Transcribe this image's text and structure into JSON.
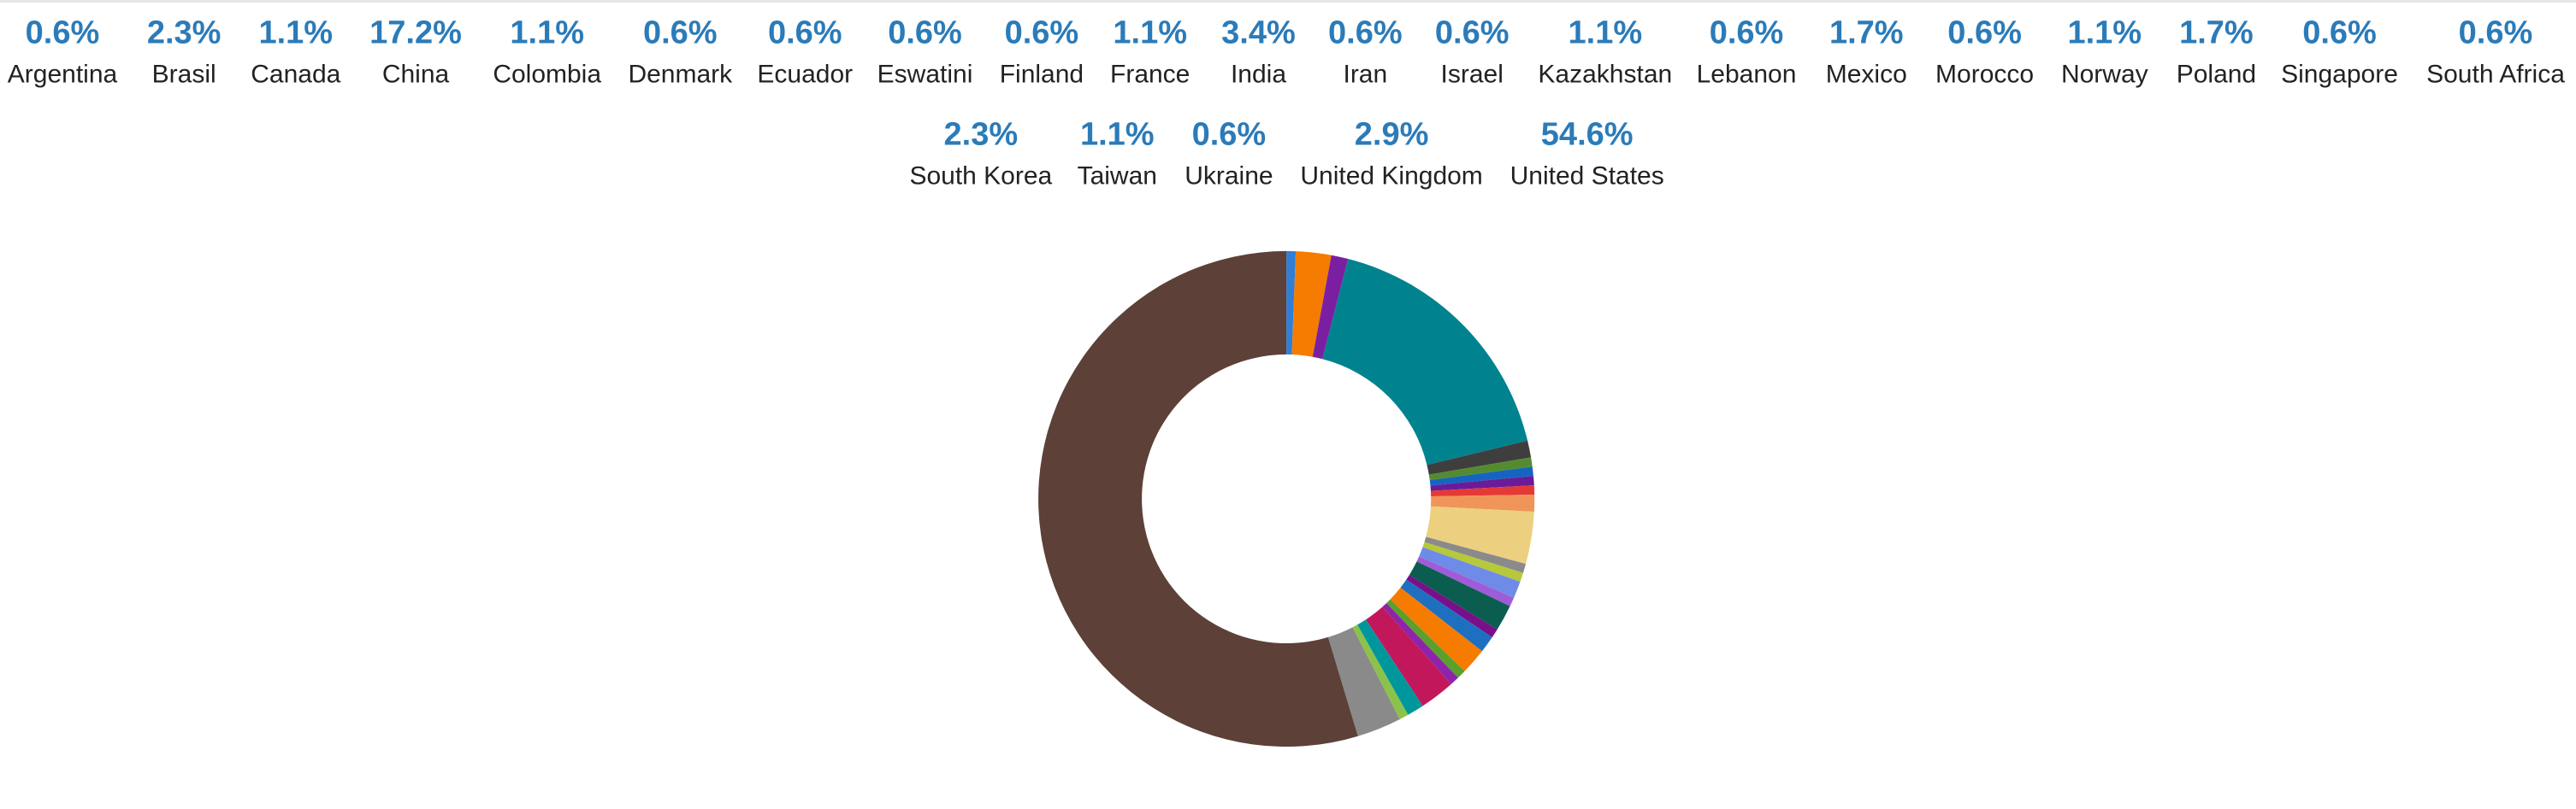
{
  "chart_data": {
    "type": "donut",
    "categories": [
      "Argentina",
      "Brasil",
      "Canada",
      "China",
      "Colombia",
      "Denmark",
      "Ecuador",
      "Eswatini",
      "Finland",
      "France",
      "India",
      "Iran",
      "Israel",
      "Kazakhstan",
      "Lebanon",
      "Mexico",
      "Morocco",
      "Norway",
      "Poland",
      "Singapore",
      "South Africa",
      "South Korea",
      "Taiwan",
      "Ukraine",
      "United Kingdom",
      "United States"
    ],
    "values": [
      0.6,
      2.3,
      1.1,
      17.2,
      1.1,
      0.6,
      0.6,
      0.6,
      0.6,
      1.1,
      3.4,
      0.6,
      0.6,
      1.1,
      0.6,
      1.7,
      0.6,
      1.1,
      1.7,
      0.6,
      0.6,
      2.3,
      1.1,
      0.6,
      2.9,
      54.6
    ],
    "value_labels": [
      "0.6%",
      "2.3%",
      "1.1%",
      "17.2%",
      "1.1%",
      "0.6%",
      "0.6%",
      "0.6%",
      "0.6%",
      "1.1%",
      "3.4%",
      "0.6%",
      "0.6%",
      "1.1%",
      "0.6%",
      "1.7%",
      "0.6%",
      "1.1%",
      "1.7%",
      "0.6%",
      "0.6%",
      "2.3%",
      "1.1%",
      "0.6%",
      "2.9%",
      "54.6%"
    ],
    "colors": [
      "#2f7ed8",
      "#f57c00",
      "#7b1fa2",
      "#00838f",
      "#3e3e3e",
      "#558b2f",
      "#1565c0",
      "#6a1b9a",
      "#e53935",
      "#f0955a",
      "#ecd07f",
      "#8a8a8a",
      "#b5c93a",
      "#6f8be8",
      "#a05bd8",
      "#0b5e4f",
      "#7a0f8a",
      "#1f6fc0",
      "#f57c00",
      "#5aa02c",
      "#8e24aa",
      "#c2185b",
      "#00979c",
      "#8bc34a",
      "#8a8a8a",
      "#5d4037"
    ]
  }
}
